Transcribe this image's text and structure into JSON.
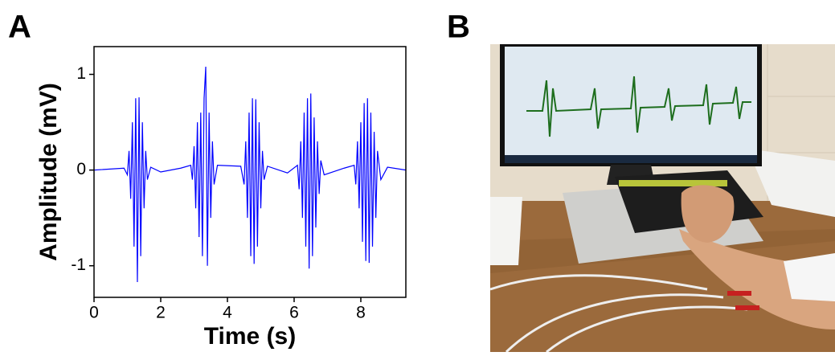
{
  "chart_data": {
    "type": "line",
    "panel_label": "A",
    "x_label": "Time (s)",
    "y_label": "Amplitude (mV)",
    "color": "#0000ff",
    "xlim": [
      0,
      9.35
    ],
    "ylim": [
      -1.33,
      1.29
    ],
    "xticks": [
      0,
      2,
      4,
      6,
      8
    ],
    "yticks": [
      -1,
      0,
      1
    ],
    "x": [
      0,
      0.9,
      1.0,
      1.05,
      1.1,
      1.15,
      1.2,
      1.25,
      1.3,
      1.35,
      1.4,
      1.45,
      1.5,
      1.55,
      1.6,
      1.7,
      2.0,
      2.6,
      2.9,
      2.95,
      3.0,
      3.05,
      3.1,
      3.15,
      3.2,
      3.25,
      3.3,
      3.35,
      3.4,
      3.45,
      3.5,
      3.55,
      3.6,
      3.7,
      4.4,
      4.5,
      4.55,
      4.6,
      4.65,
      4.7,
      4.75,
      4.8,
      4.85,
      4.9,
      4.95,
      5.0,
      5.05,
      5.1,
      5.2,
      5.8,
      6.1,
      6.15,
      6.2,
      6.25,
      6.3,
      6.35,
      6.4,
      6.45,
      6.5,
      6.55,
      6.6,
      6.65,
      6.7,
      6.75,
      6.8,
      6.9,
      7.5,
      7.8,
      7.85,
      7.9,
      7.95,
      8.0,
      8.05,
      8.1,
      8.15,
      8.2,
      8.25,
      8.3,
      8.35,
      8.4,
      8.45,
      8.5,
      8.6,
      8.8,
      9.35
    ],
    "values": [
      0,
      0.02,
      -0.05,
      0.2,
      -0.3,
      0.5,
      -0.8,
      0.75,
      -1.17,
      0.76,
      -0.9,
      0.5,
      -0.4,
      0.2,
      -0.1,
      0.03,
      -0.02,
      0.02,
      0.05,
      -0.1,
      0.25,
      -0.4,
      0.5,
      -0.7,
      0.6,
      -0.9,
      0.75,
      1.08,
      -1.0,
      0.6,
      -0.5,
      0.3,
      -0.15,
      0.05,
      0.04,
      -0.15,
      0.3,
      -0.5,
      0.6,
      -0.9,
      0.75,
      -0.98,
      0.74,
      -0.8,
      0.5,
      -0.4,
      0.2,
      -0.1,
      0.04,
      -0.03,
      0.05,
      -0.2,
      0.3,
      -0.5,
      0.6,
      -0.8,
      0.75,
      -1.03,
      0.8,
      -0.9,
      0.55,
      -0.6,
      0.3,
      -0.25,
      0.1,
      -0.05,
      0.02,
      0.05,
      -0.15,
      0.3,
      -0.4,
      0.5,
      -0.75,
      0.7,
      -0.95,
      0.75,
      -0.97,
      0.6,
      -0.8,
      0.4,
      -0.5,
      0.2,
      -0.1,
      0.03,
      0
    ]
  },
  "photo": {
    "panel_label": "B"
  }
}
